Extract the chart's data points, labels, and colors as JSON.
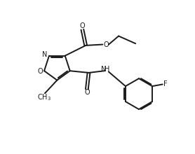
{
  "background_color": "#ffffff",
  "line_color": "#1a1a1a",
  "line_width": 1.4,
  "fig_width": 2.78,
  "fig_height": 2.2,
  "dpi": 100,
  "xlim": [
    0,
    10
  ],
  "ylim": [
    0,
    8
  ]
}
